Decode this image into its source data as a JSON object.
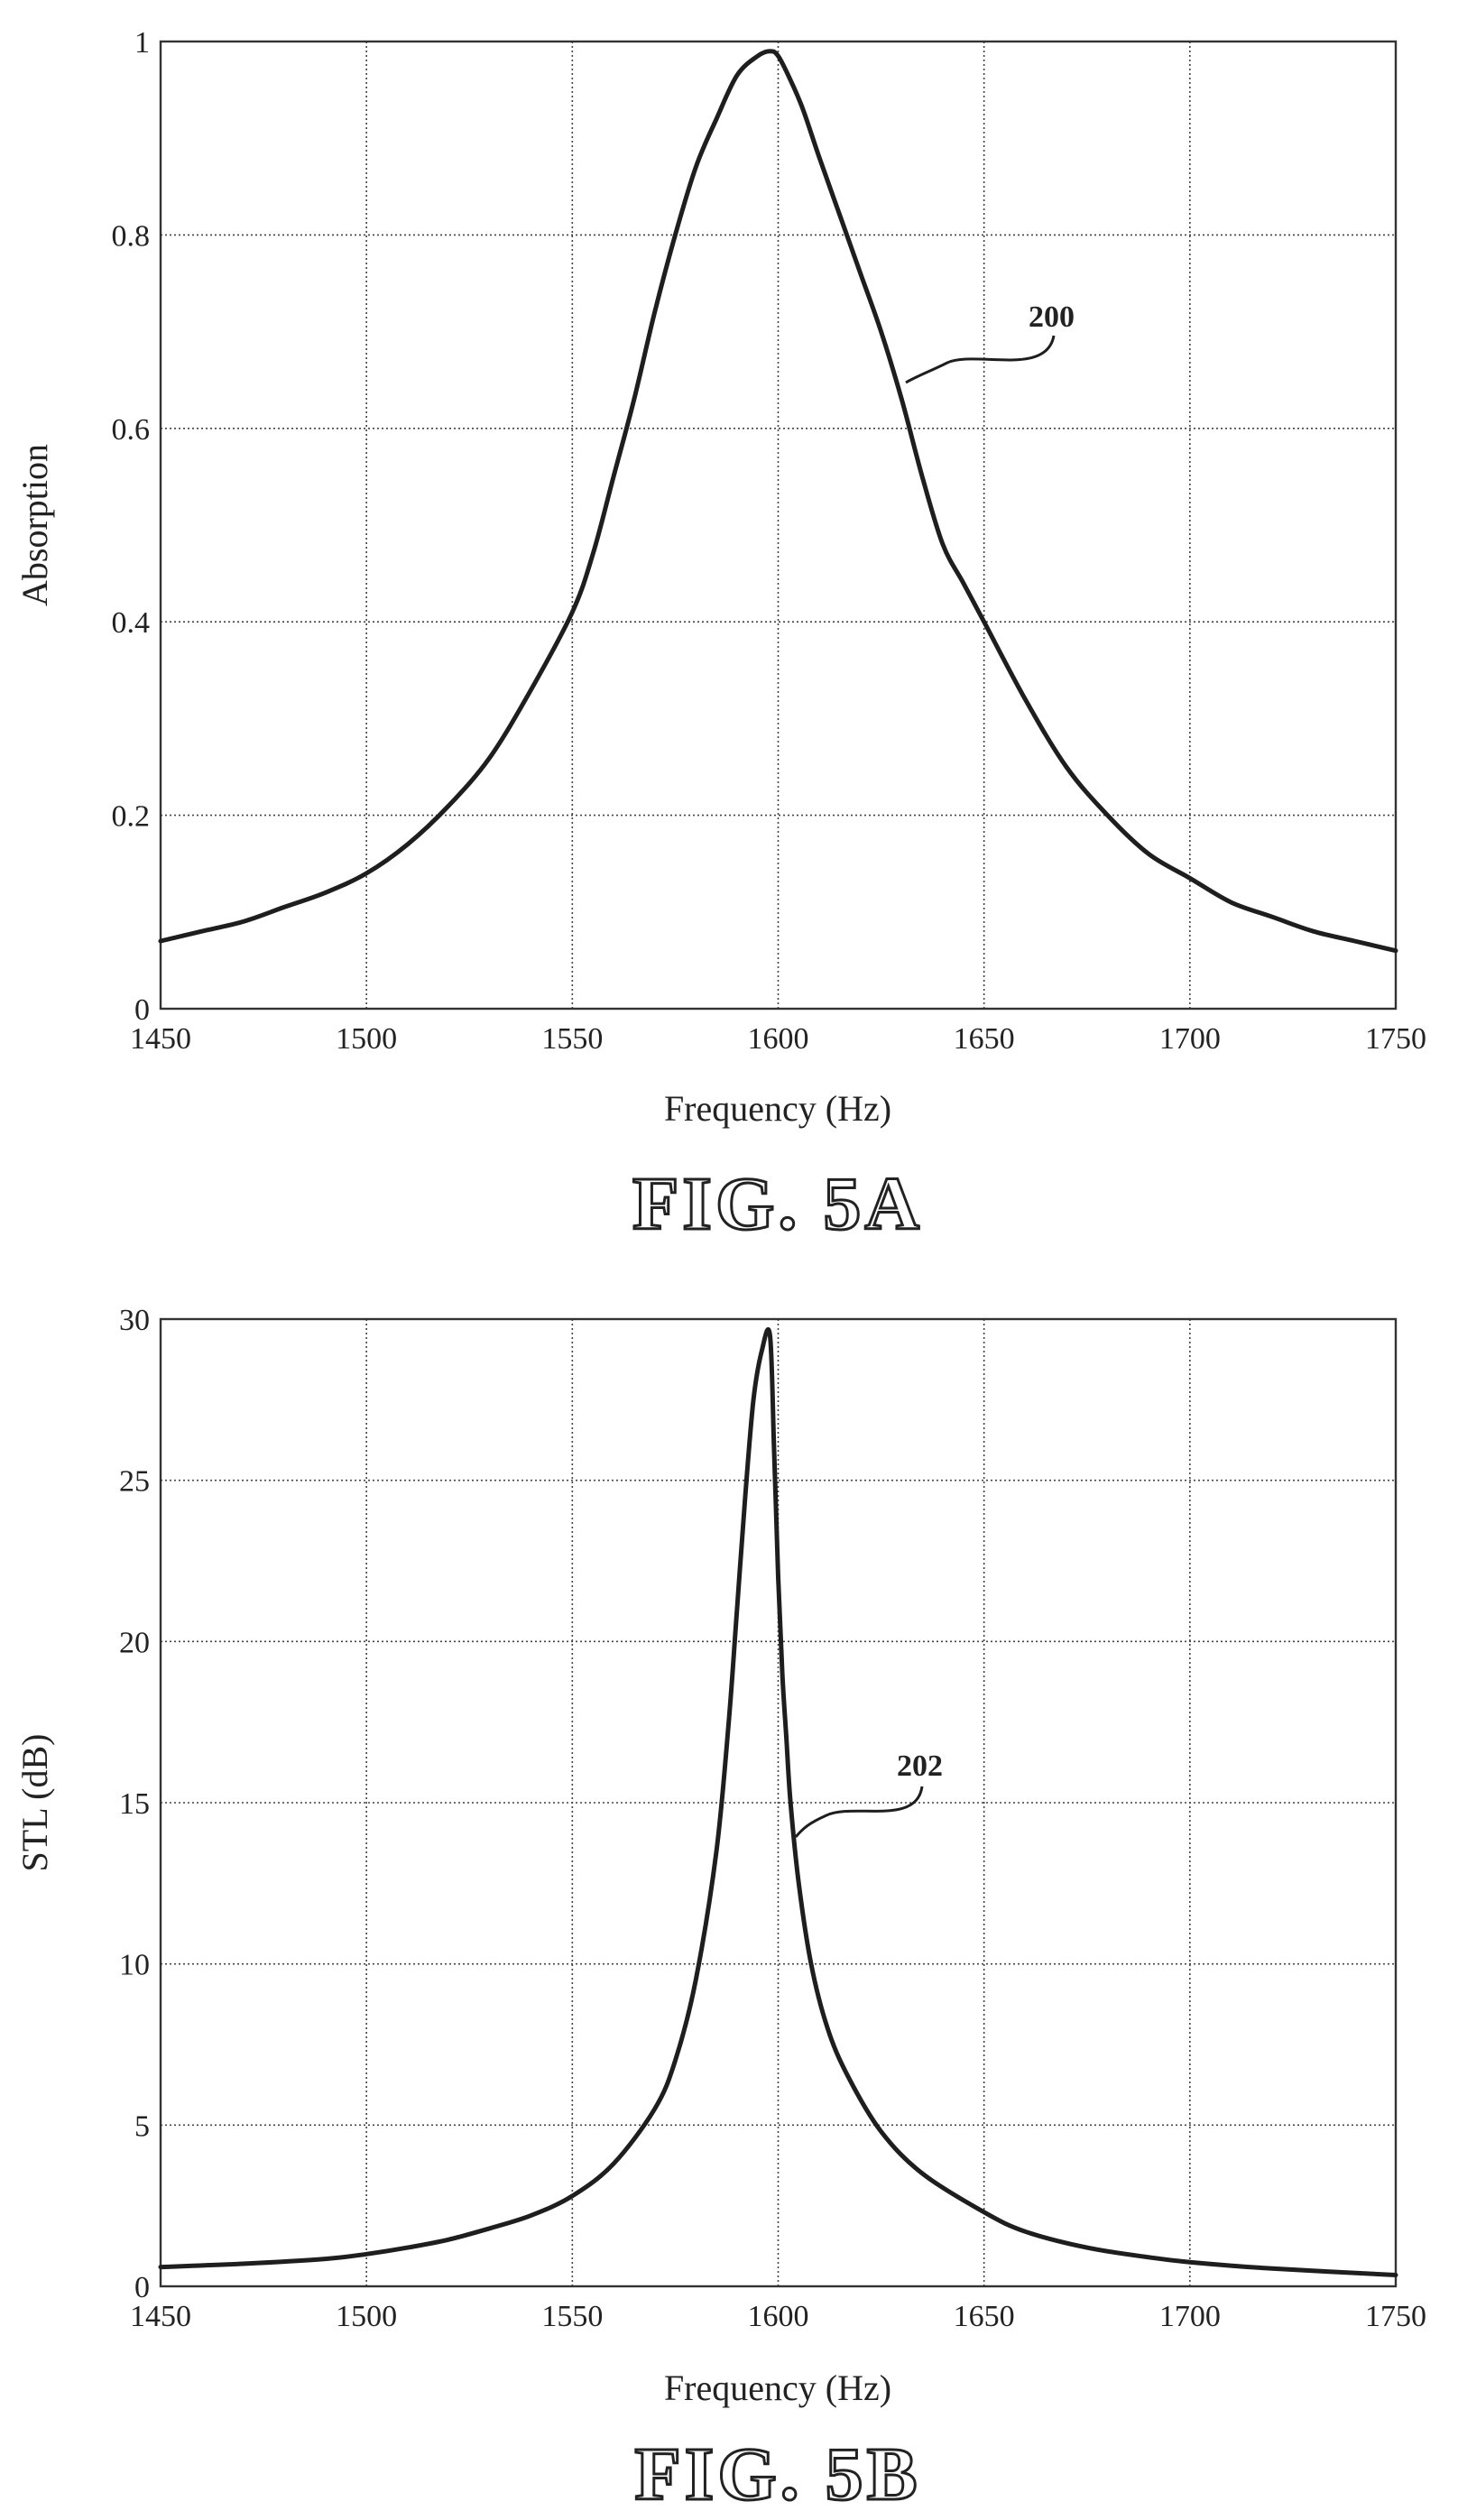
{
  "chart_data": [
    {
      "type": "line",
      "figure_label": "FIG. 5A",
      "title": "",
      "xlabel": "Frequency (Hz)",
      "ylabel": "Absorption",
      "xlim": [
        1450,
        1750
      ],
      "ylim": [
        0,
        1
      ],
      "xticks": [
        "1450",
        "1500",
        "1550",
        "1600",
        "1650",
        "1700",
        "1750"
      ],
      "yticks": [
        "0",
        "0.2",
        "0.4",
        "0.6",
        "0.8",
        "1"
      ],
      "grid": true,
      "annotation": "200",
      "series": [
        {
          "x": [
            1450,
            1460,
            1470,
            1480,
            1490,
            1500,
            1510,
            1520,
            1530,
            1540,
            1550,
            1555,
            1560,
            1565,
            1570,
            1575,
            1580,
            1585,
            1590,
            1595,
            1598,
            1600,
            1603,
            1606,
            1610,
            1615,
            1620,
            1625,
            1630,
            1635,
            1640,
            1645,
            1650,
            1660,
            1670,
            1680,
            1690,
            1700,
            1710,
            1720,
            1730,
            1740,
            1750
          ],
          "y": [
            0.07,
            0.08,
            0.09,
            0.105,
            0.12,
            0.14,
            0.17,
            0.21,
            0.26,
            0.33,
            0.41,
            0.47,
            0.55,
            0.63,
            0.72,
            0.8,
            0.87,
            0.92,
            0.965,
            0.985,
            0.99,
            0.985,
            0.96,
            0.93,
            0.88,
            0.82,
            0.76,
            0.7,
            0.63,
            0.55,
            0.48,
            0.44,
            0.4,
            0.32,
            0.25,
            0.2,
            0.16,
            0.135,
            0.11,
            0.095,
            0.08,
            0.07,
            0.06
          ]
        }
      ]
    },
    {
      "type": "line",
      "figure_label": "FIG. 5B",
      "title": "",
      "xlabel": "Frequency (Hz)",
      "ylabel": "STL (dB)",
      "xlim": [
        1450,
        1750
      ],
      "ylim": [
        0,
        30
      ],
      "xticks": [
        "1450",
        "1500",
        "1550",
        "1600",
        "1650",
        "1700",
        "1750"
      ],
      "yticks": [
        "0",
        "5",
        "10",
        "15",
        "20",
        "25",
        "30"
      ],
      "grid": true,
      "annotation": "202",
      "series": [
        {
          "x": [
            1450,
            1470,
            1490,
            1500,
            1510,
            1520,
            1530,
            1540,
            1550,
            1560,
            1570,
            1575,
            1580,
            1585,
            1588,
            1590,
            1592,
            1594,
            1596,
            1598,
            1599,
            1600,
            1601,
            1602,
            1603,
            1605,
            1608,
            1612,
            1617,
            1625,
            1635,
            1650,
            1660,
            1675,
            1690,
            1700,
            1720,
            1750
          ],
          "y": [
            0.6,
            0.7,
            0.85,
            1.0,
            1.2,
            1.45,
            1.8,
            2.2,
            2.8,
            3.8,
            5.5,
            7.0,
            9.5,
            13.5,
            17.5,
            21.0,
            24.5,
            27.5,
            29.0,
            29.5,
            26.0,
            22.0,
            19.0,
            17.0,
            15.0,
            12.5,
            10.0,
            8.0,
            6.5,
            4.8,
            3.5,
            2.3,
            1.7,
            1.2,
            0.9,
            0.75,
            0.55,
            0.35
          ]
        }
      ]
    }
  ]
}
